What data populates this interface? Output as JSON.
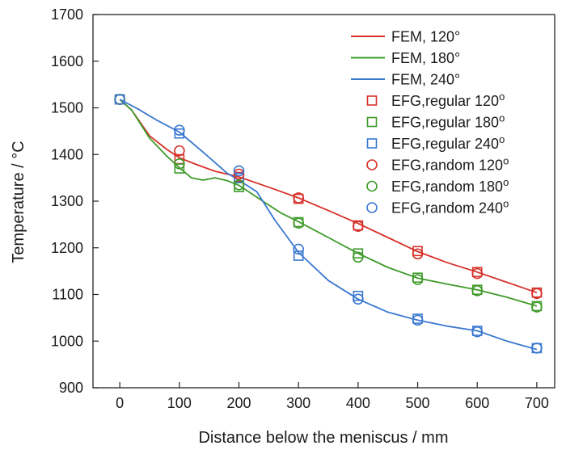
{
  "chart_data": {
    "type": "line",
    "title": "",
    "xlabel": "Distance below the meniscus / mm",
    "ylabel": "Temperature / °C",
    "xlim": [
      -45,
      730
    ],
    "ylim": [
      900,
      1700
    ],
    "x_ticks": [
      "0",
      "100",
      "200",
      "300",
      "400",
      "500",
      "600",
      "700"
    ],
    "y_ticks": [
      "900",
      "1000",
      "1100",
      "1200",
      "1300",
      "1400",
      "1500",
      "1600",
      "1700"
    ],
    "grid": false,
    "legend_position": "top-right",
    "series": [
      {
        "name": "FEM, 120°",
        "kind": "line",
        "color": "#d6312a",
        "x": [
          0,
          20,
          50,
          80,
          100,
          130,
          160,
          200,
          250,
          300,
          350,
          400,
          450,
          500,
          550,
          600,
          650,
          700
        ],
        "y": [
          1518,
          1495,
          1440,
          1410,
          1393,
          1378,
          1364,
          1352,
          1330,
          1307,
          1280,
          1252,
          1222,
          1192,
          1168,
          1148,
          1126,
          1104
        ]
      },
      {
        "name": "FEM, 180°",
        "kind": "line",
        "color": "#3e9a2a",
        "x": [
          0,
          20,
          50,
          80,
          100,
          120,
          140,
          160,
          180,
          200,
          240,
          270,
          300,
          350,
          400,
          450,
          500,
          550,
          600,
          650,
          700
        ],
        "y": [
          1518,
          1495,
          1435,
          1395,
          1372,
          1350,
          1345,
          1350,
          1344,
          1334,
          1300,
          1275,
          1256,
          1222,
          1188,
          1158,
          1135,
          1122,
          1110,
          1094,
          1075
        ]
      },
      {
        "name": "FEM, 240°",
        "kind": "line",
        "color": "#3a78d0",
        "x": [
          0,
          30,
          60,
          100,
          140,
          180,
          200,
          230,
          260,
          300,
          350,
          400,
          450,
          500,
          550,
          600,
          650,
          700
        ],
        "y": [
          1518,
          1498,
          1475,
          1448,
          1405,
          1360,
          1345,
          1320,
          1260,
          1190,
          1130,
          1090,
          1062,
          1045,
          1032,
          1022,
          1000,
          982
        ]
      },
      {
        "name": "EFG,regular 120",
        "name_suffix": "o",
        "kind": "square",
        "color": "#d6312a",
        "x": [
          0,
          100,
          200,
          300,
          400,
          500,
          600,
          700
        ],
        "y": [
          1518,
          1390,
          1352,
          1305,
          1248,
          1193,
          1148,
          1104
        ]
      },
      {
        "name": "EFG,regular 180",
        "name_suffix": "o",
        "kind": "square",
        "color": "#3e9a2a",
        "x": [
          0,
          100,
          200,
          300,
          400,
          500,
          600,
          700
        ],
        "y": [
          1518,
          1370,
          1330,
          1255,
          1188,
          1136,
          1110,
          1075
        ]
      },
      {
        "name": "EFG,regular 240",
        "name_suffix": "o",
        "kind": "square",
        "color": "#3a78d0",
        "x": [
          0,
          100,
          200,
          300,
          400,
          500,
          600,
          700
        ],
        "y": [
          1518,
          1445,
          1350,
          1183,
          1097,
          1048,
          1022,
          985
        ]
      },
      {
        "name": "EFG,random 120",
        "name_suffix": "o",
        "kind": "circle",
        "color": "#d6312a",
        "x": [
          0,
          100,
          200,
          300,
          400,
          500,
          600,
          700
        ],
        "y": [
          1518,
          1408,
          1358,
          1307,
          1246,
          1187,
          1145,
          1102
        ]
      },
      {
        "name": "EFG,random 180",
        "name_suffix": "o",
        "kind": "circle",
        "color": "#3e9a2a",
        "x": [
          0,
          100,
          200,
          300,
          400,
          500,
          600,
          700
        ],
        "y": [
          1518,
          1380,
          1335,
          1253,
          1180,
          1132,
          1108,
          1073
        ]
      },
      {
        "name": "EFG,random 240",
        "name_suffix": "o",
        "kind": "circle",
        "color": "#3a78d0",
        "x": [
          0,
          100,
          200,
          300,
          400,
          500,
          600,
          700
        ],
        "y": [
          1518,
          1452,
          1365,
          1197,
          1090,
          1045,
          1020,
          985
        ]
      }
    ]
  }
}
